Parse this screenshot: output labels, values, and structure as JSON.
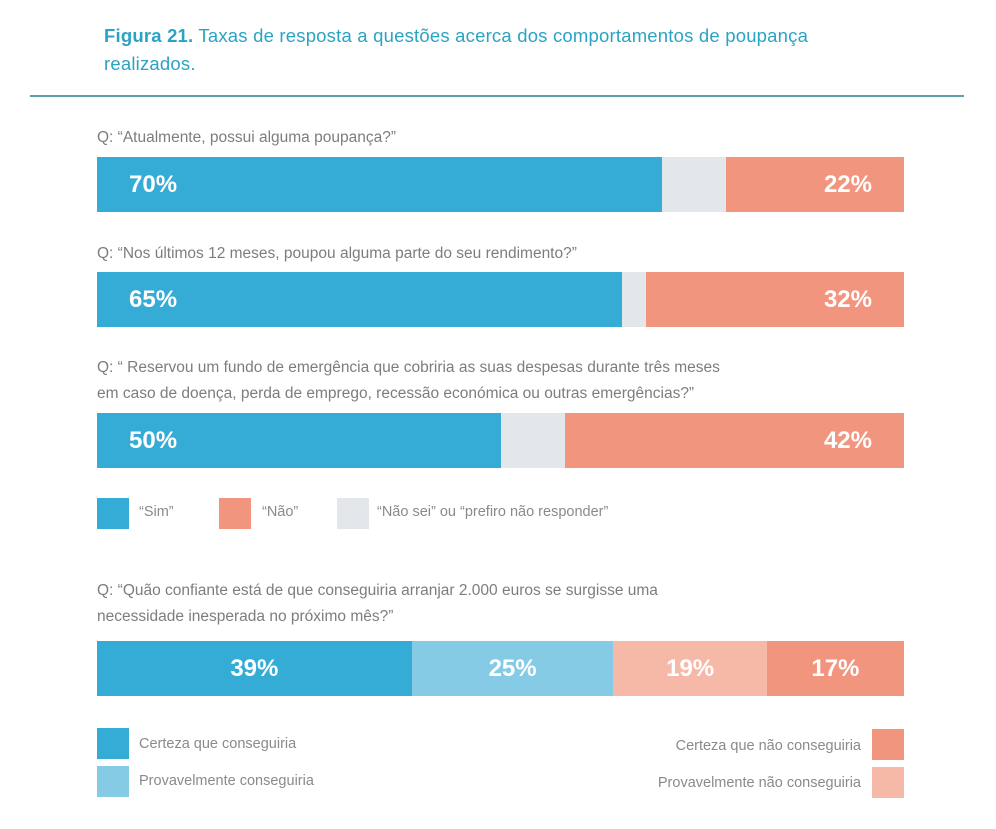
{
  "figure": {
    "label": "Figura 21.",
    "title": "Taxas de resposta a questões acerca dos comportamentos de poupança realizados."
  },
  "colors": {
    "sim": "#35acd6",
    "nao": "#f2957e",
    "nao_sei": "#e3e6ea",
    "certeza_sim": "#35acd6",
    "provavel_sim": "#85cbe6",
    "provavel_nao": "#f6b9a8",
    "certeza_nao": "#f2957e"
  },
  "chart_data": [
    {
      "type": "bar",
      "orientation": "horizontal-stacked",
      "title": "Q: “Atualmente, possui alguma poupança?”",
      "categories": [
        "“Sim”",
        "“Não sei” ou “prefiro não responder”",
        "“Não”"
      ],
      "values": [
        70,
        8,
        22
      ],
      "data_labels": [
        "70%",
        "",
        "22%"
      ],
      "unit": "%"
    },
    {
      "type": "bar",
      "orientation": "horizontal-stacked",
      "title": "Q: “Nos últimos 12 meses, poupou alguma parte do seu rendimento?”",
      "categories": [
        "“Sim”",
        "“Não sei” ou “prefiro não responder”",
        "“Não”"
      ],
      "values": [
        65,
        3,
        32
      ],
      "data_labels": [
        "65%",
        "",
        "32%"
      ],
      "unit": "%"
    },
    {
      "type": "bar",
      "orientation": "horizontal-stacked",
      "title": "Q: “ Reservou um fundo de emergência que cobriria as suas despesas durante três meses em caso de doença, perda de emprego, recessão económica ou outras emergências?”",
      "categories": [
        "“Sim”",
        "“Não sei” ou “prefiro não responder”",
        "“Não”"
      ],
      "values": [
        50,
        8,
        42
      ],
      "data_labels": [
        "50%",
        "",
        "42%"
      ],
      "unit": "%"
    },
    {
      "type": "bar",
      "orientation": "horizontal-stacked",
      "title": "Q: “Quão confiante está de que conseguiria arranjar 2.000 euros se surgisse uma necessidade inesperada no próximo mês?”",
      "categories": [
        "Certeza que conseguiria",
        "Provavelmente conseguiria",
        "Provavelmente não conseguiria",
        "Certeza que não conseguiria"
      ],
      "values": [
        39,
        25,
        19,
        17
      ],
      "data_labels": [
        "39%",
        "25%",
        "19%",
        "17%"
      ],
      "unit": "%"
    }
  ],
  "questions": [
    {
      "lines": [
        "Q: “Atualmente, possui alguma poupança?”"
      ]
    },
    {
      "lines": [
        "Q: “Nos últimos 12 meses, poupou alguma parte do seu rendimento?”"
      ]
    },
    {
      "lines": [
        "Q: “ Reservou um fundo de emergência que cobriria as suas despesas durante três meses",
        "em caso de doença, perda de emprego, recessão económica ou outras emergências?”"
      ]
    },
    {
      "lines": [
        "Q: “Quão confiante está de que conseguiria arranjar 2.000 euros se surgisse uma",
        "necessidade inesperada no próximo mês?”"
      ]
    }
  ],
  "legend1": [
    {
      "label": "“Sim”",
      "color_key": "sim"
    },
    {
      "label": "“Não”",
      "color_key": "nao"
    },
    {
      "label": "“Não sei” ou “prefiro não responder”",
      "color_key": "nao_sei"
    }
  ],
  "legend2": [
    {
      "label": "Certeza que conseguiria",
      "color_key": "certeza_sim"
    },
    {
      "label": "Provavelmente conseguiria",
      "color_key": "provavel_sim"
    },
    {
      "label": "Certeza que não conseguiria",
      "color_key": "certeza_nao"
    },
    {
      "label": "Provavelmente não conseguiria",
      "color_key": "provavel_nao"
    }
  ]
}
